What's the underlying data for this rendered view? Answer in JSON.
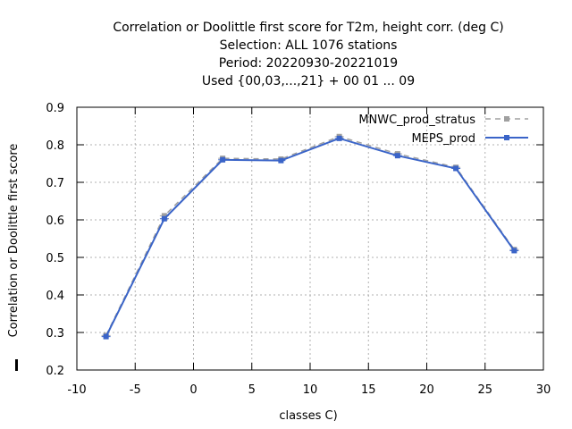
{
  "chart_data": {
    "type": "line",
    "title_lines": [
      "Correlation or Doolittle first score  for T2m, height corr. (deg C)",
      "Selection: ALL   1076 stations",
      "Period: 20220930-20221019",
      "Used {00,03,...,21} + 00 01 ... 09"
    ],
    "xlabel": "classes C)",
    "ylabel": "Correlation or Doolittle first score",
    "xlim": [
      -10,
      30
    ],
    "ylim": [
      0.2,
      0.9
    ],
    "xticks": [
      -10,
      -5,
      0,
      5,
      10,
      15,
      20,
      25,
      30
    ],
    "yticks": [
      0.2,
      0.3,
      0.4,
      0.5,
      0.6,
      0.7,
      0.8,
      0.9
    ],
    "grid": true,
    "legend_position": "top-right",
    "series": [
      {
        "name": "MNWC_prod_stratus",
        "color": "#a0a0a0",
        "style": "dashed",
        "x": [
          -7.5,
          -2.5,
          2.5,
          7.5,
          12.5,
          17.5,
          22.5,
          27.5
        ],
        "y": [
          0.292,
          0.611,
          0.764,
          0.762,
          0.822,
          0.776,
          0.74,
          0.521
        ]
      },
      {
        "name": "MEPS_prod",
        "color": "#3a64c8",
        "style": "solid",
        "x": [
          -7.5,
          -2.5,
          2.5,
          7.5,
          12.5,
          17.5,
          22.5,
          27.5
        ],
        "y": [
          0.289,
          0.603,
          0.76,
          0.758,
          0.817,
          0.771,
          0.737,
          0.518
        ]
      }
    ]
  }
}
